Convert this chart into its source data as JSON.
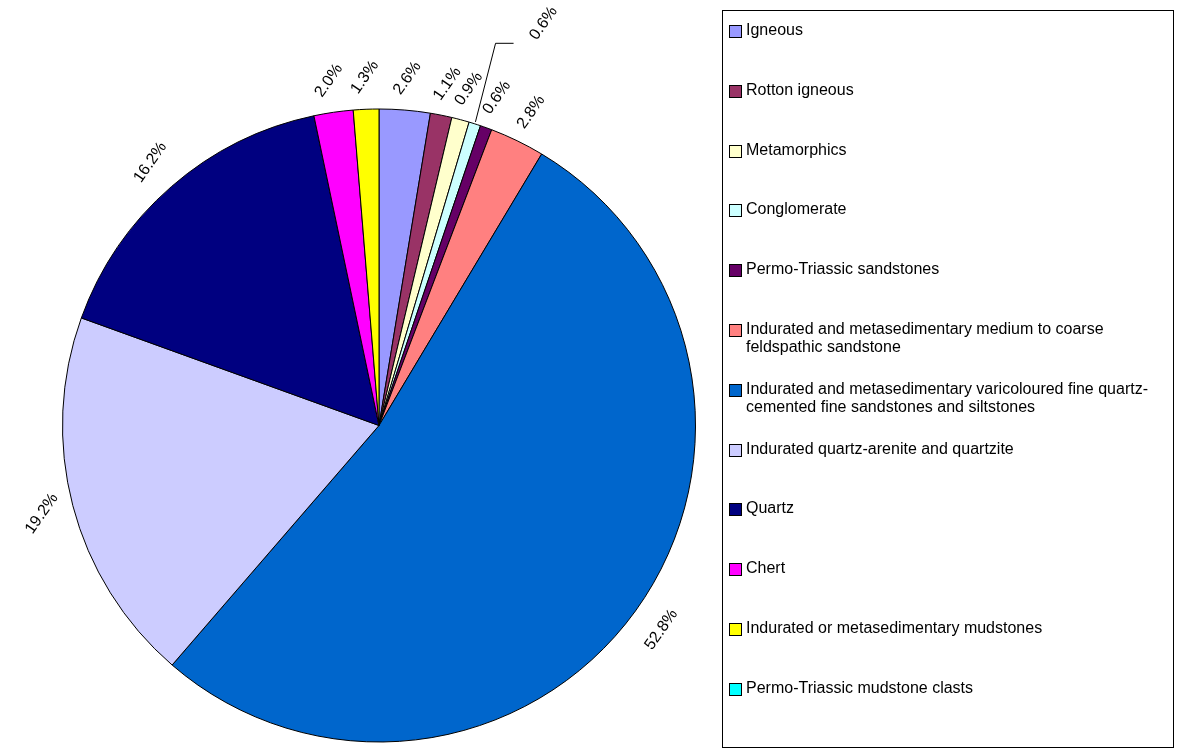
{
  "chart_data": {
    "type": "pie",
    "categories": [
      "Igneous",
      "Rotton igneous",
      "Metamorphics",
      "Conglomerate",
      "Permo-Triassic sandstones",
      "Indurated and metasedimentary medium to coarse feldspathic sandstone",
      "Indurated and metasedimentary varicoloured fine quartz-cemented fine sandstones and siltstones",
      "Indurated quartz-arenite and quartzite",
      "Quartz",
      "Chert",
      "Indurated or metasedimentary mudstones",
      "Permo-Triassic mudstone clasts"
    ],
    "values": [
      2.6,
      1.1,
      0.9,
      0.6,
      0.6,
      2.8,
      52.8,
      19.2,
      16.2,
      2.0,
      1.3,
      0
    ],
    "value_labels": [
      "2.6%",
      "1.1%",
      "0.9%",
      "0.6%",
      "0.6%",
      "2.8%",
      "52.8%",
      "19.2%",
      "16.2%",
      "2.0%",
      "1.3%",
      null
    ],
    "colors": [
      "#9999ff",
      "#993366",
      "#ffffcc",
      "#ccffff",
      "#660066",
      "#ff8080",
      "#0066cc",
      "#ccccff",
      "#000080",
      "#ff00ff",
      "#ffff00",
      "#00ffff"
    ],
    "legend": "right"
  }
}
